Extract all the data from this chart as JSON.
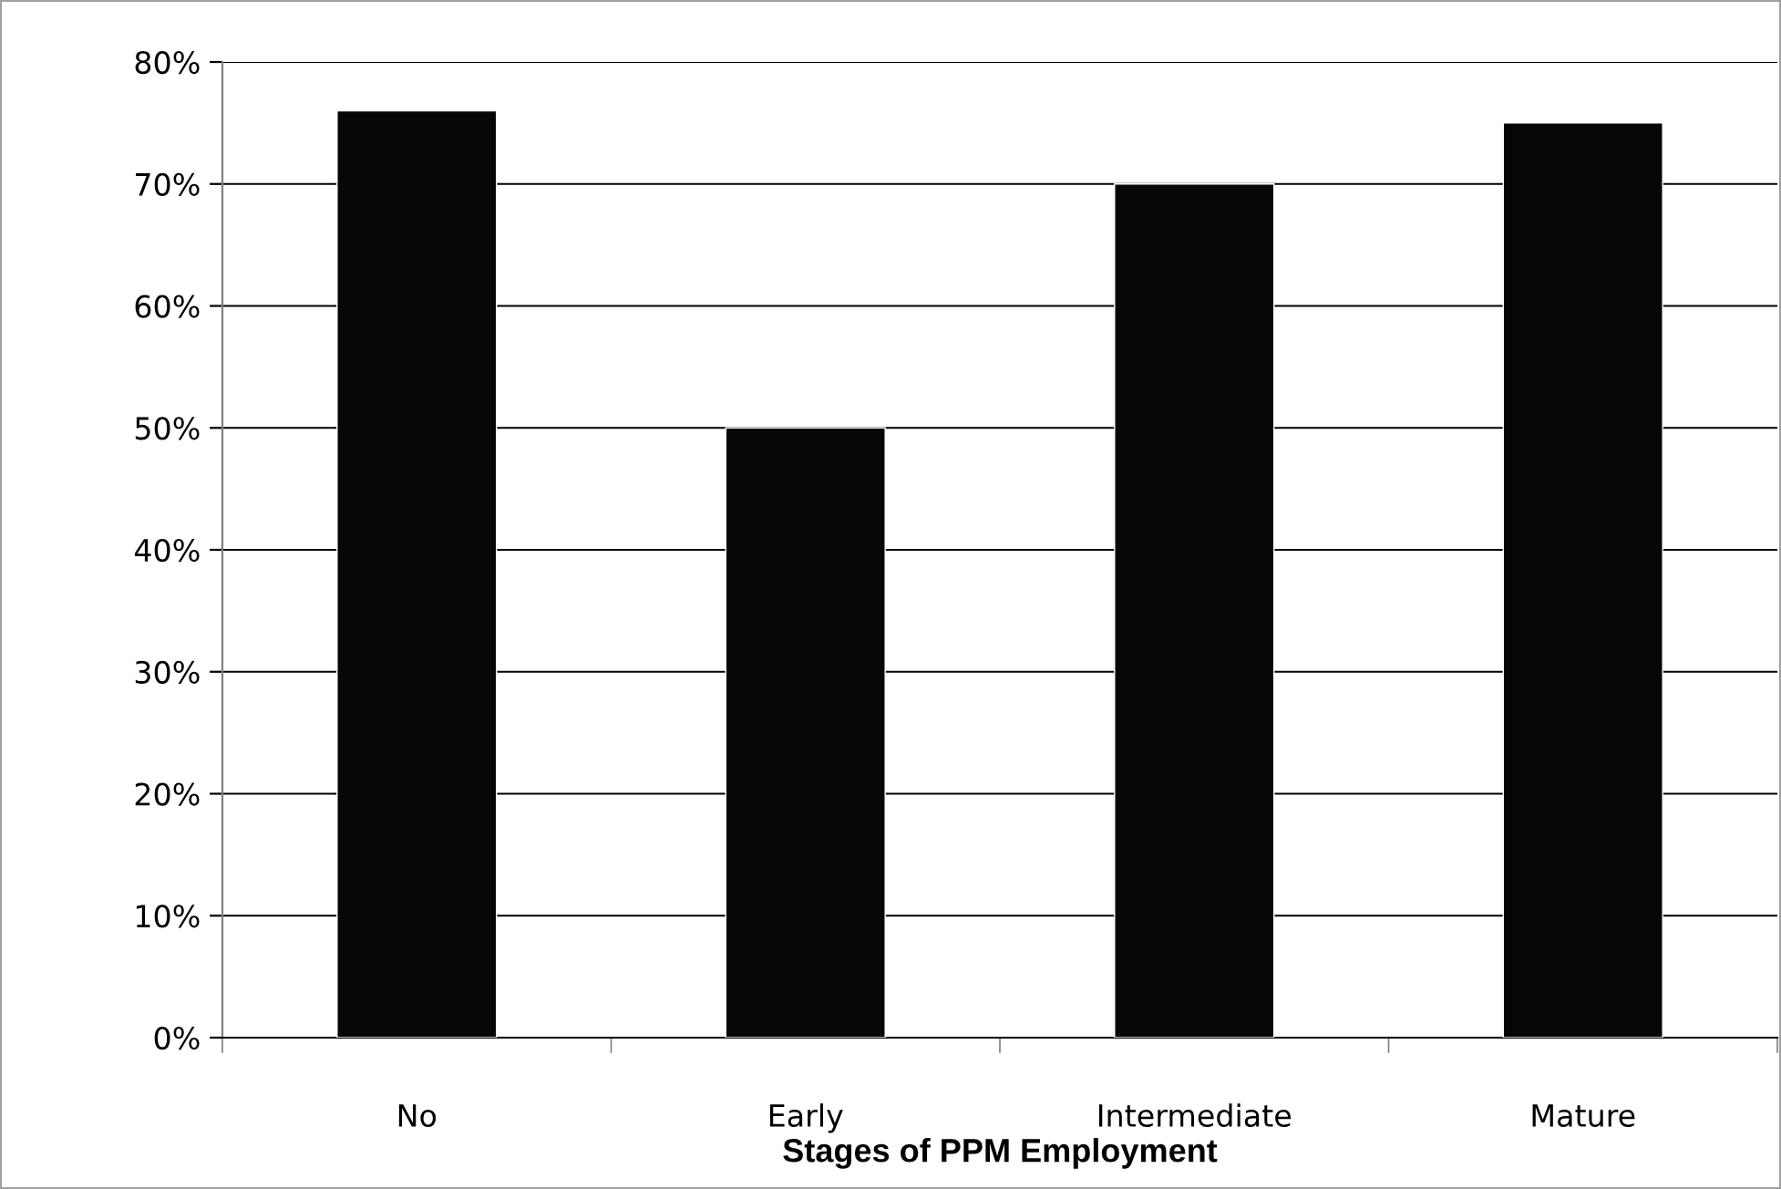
{
  "chart_data": {
    "type": "bar",
    "xlabel": "Stages of PPM Employment",
    "categories": [
      "No",
      "Early",
      "Intermediate",
      "Mature"
    ],
    "values": [
      76,
      50,
      70,
      75
    ],
    "color": "#060606",
    "ylim": [
      0,
      80
    ],
    "yticks": [
      {
        "value": 0,
        "label": "0%"
      },
      {
        "value": 10,
        "label": "10%"
      },
      {
        "value": 20,
        "label": "20%"
      },
      {
        "value": 30,
        "label": "30%"
      },
      {
        "value": 40,
        "label": "40%"
      },
      {
        "value": 50,
        "label": "50%"
      },
      {
        "value": 60,
        "label": "60%"
      },
      {
        "value": 70,
        "label": "70%"
      },
      {
        "value": 80,
        "label": "80%"
      }
    ],
    "grid": "y",
    "legend": false
  }
}
